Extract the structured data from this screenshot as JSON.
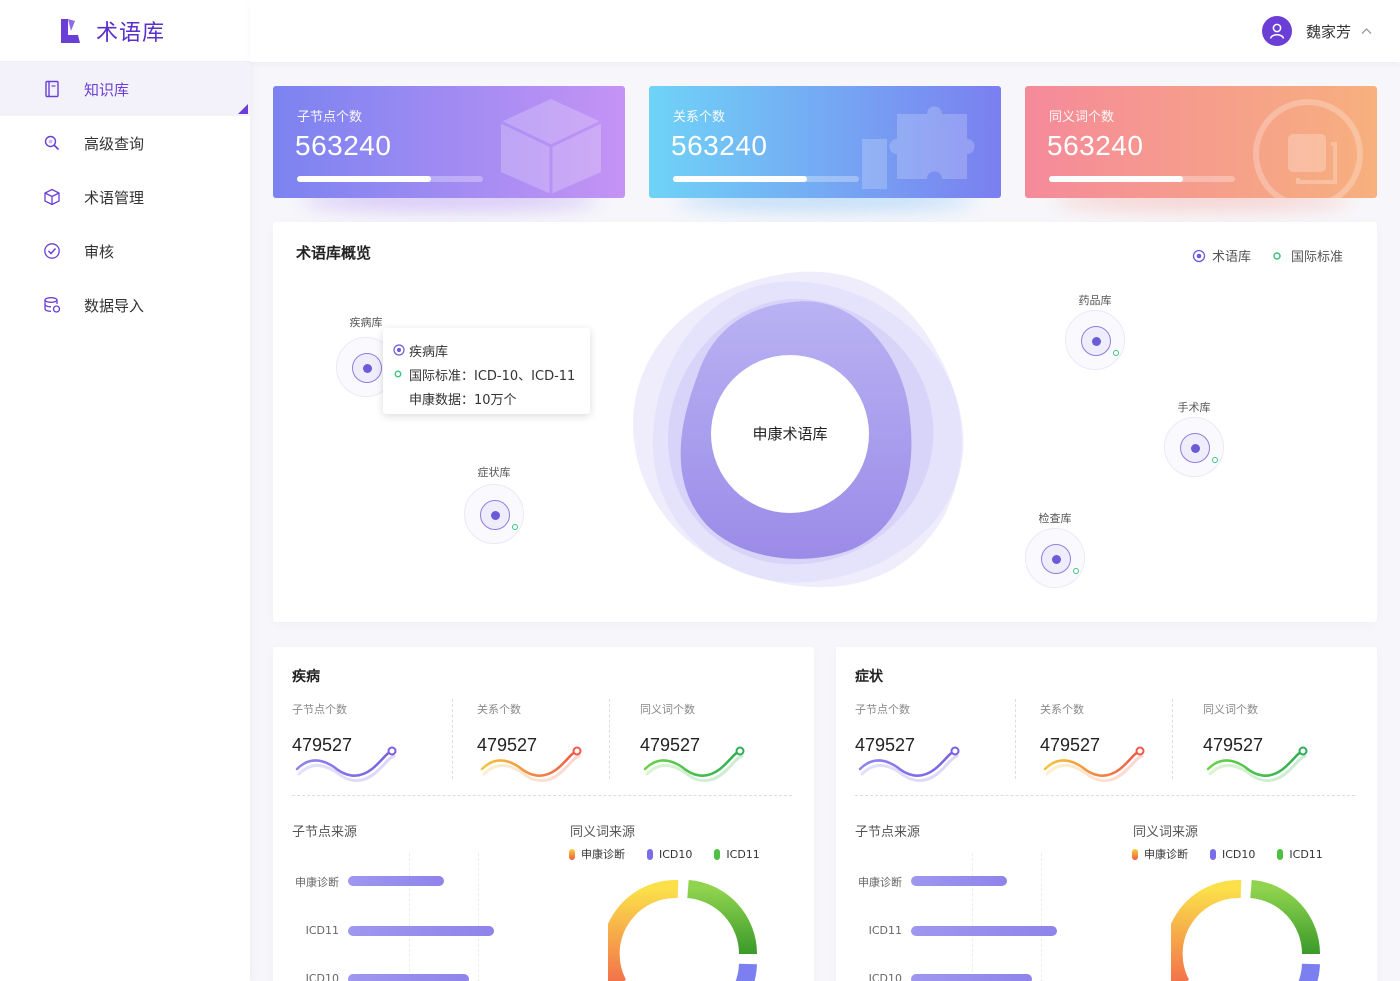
{
  "app": {
    "title": "术语库"
  },
  "sidebar": {
    "items": [
      {
        "label": "知识库",
        "icon": "book-icon",
        "active": true
      },
      {
        "label": "高级查询",
        "icon": "search-icon",
        "active": false
      },
      {
        "label": "术语管理",
        "icon": "cube-icon",
        "active": false
      },
      {
        "label": "审核",
        "icon": "check-circle-icon",
        "active": false
      },
      {
        "label": "数据导入",
        "icon": "database-icon",
        "active": false
      }
    ]
  },
  "header": {
    "user_name": "魏家芳"
  },
  "stats": [
    {
      "label": "子节点个数",
      "value": "563240",
      "progress": 0.72
    },
    {
      "label": "关系个数",
      "value": "563240",
      "progress": 0.72
    },
    {
      "label": "同义词个数",
      "value": "563240",
      "progress": 0.72
    }
  ],
  "overview": {
    "title": "术语库概览",
    "legend": {
      "library": "术语库",
      "standard": "国际标准"
    },
    "center": "申康术语库",
    "nodes": {
      "disease": "疾病库",
      "symptom": "症状库",
      "drug": "药品库",
      "surgery": "手术库",
      "exam": "检查库"
    },
    "tooltip": {
      "name": "疾病库",
      "standard": "国际标准：ICD-10、ICD-11",
      "data": "申康数据：10万个"
    }
  },
  "sections": [
    {
      "title": "疾病",
      "metrics": [
        {
          "label": "子节点个数",
          "value": "479527"
        },
        {
          "label": "关系个数",
          "value": "479527"
        },
        {
          "label": "同义词个数",
          "value": "479527"
        }
      ],
      "source_title": "子节点来源",
      "synonym_title": "同义词来源",
      "bars": [
        {
          "label": "申康诊断",
          "value": 0.66
        },
        {
          "label": "ICD11",
          "value": 1.0
        },
        {
          "label": "ICD10",
          "value": 0.83
        }
      ],
      "donut_legend": [
        "申康诊断",
        "ICD10",
        "ICD11"
      ]
    },
    {
      "title": "症状",
      "metrics": [
        {
          "label": "子节点个数",
          "value": "479527"
        },
        {
          "label": "关系个数",
          "value": "479527"
        },
        {
          "label": "同义词个数",
          "value": "479527"
        }
      ],
      "source_title": "子节点来源",
      "synonym_title": "同义词来源",
      "bars": [
        {
          "label": "申康诊断",
          "value": 0.66
        },
        {
          "label": "ICD11",
          "value": 1.0
        },
        {
          "label": "ICD10",
          "value": 0.83
        }
      ],
      "donut_legend": [
        "申康诊断",
        "ICD10",
        "ICD11"
      ]
    }
  ]
}
